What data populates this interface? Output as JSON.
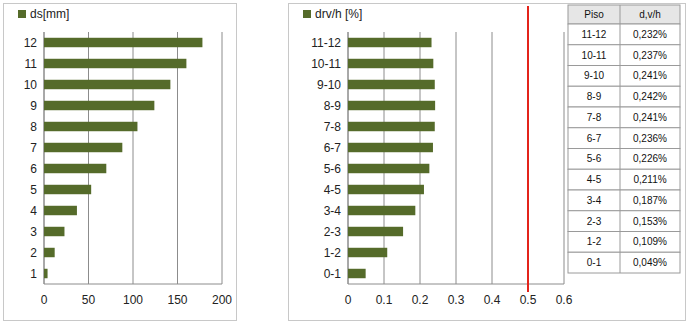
{
  "chart_data": [
    {
      "type": "bar",
      "orientation": "horizontal",
      "categories": [
        "1",
        "2",
        "3",
        "4",
        "5",
        "6",
        "7",
        "8",
        "9",
        "10",
        "11",
        "12"
      ],
      "series": [
        {
          "name": "ds[mm]",
          "color": "#556b2a",
          "values": [
            4,
            12,
            23,
            37,
            53,
            70,
            88,
            105,
            124,
            142,
            160,
            178
          ]
        }
      ],
      "xlim": [
        0,
        200
      ],
      "xticks": [
        0,
        50,
        100,
        150,
        200
      ],
      "grid": true,
      "legend": "top-left"
    },
    {
      "type": "bar",
      "orientation": "horizontal",
      "categories": [
        "0-1",
        "1-2",
        "2-3",
        "3-4",
        "4-5",
        "5-6",
        "6-7",
        "7-8",
        "8-9",
        "9-10",
        "10-11",
        "11-12"
      ],
      "series": [
        {
          "name": "drv/h [%]",
          "color": "#556b2a",
          "values": [
            0.049,
            0.109,
            0.153,
            0.187,
            0.211,
            0.226,
            0.236,
            0.241,
            0.242,
            0.241,
            0.237,
            0.232
          ]
        }
      ],
      "xlim": [
        0,
        0.6
      ],
      "xticks": [
        0,
        0.1,
        0.2,
        0.3,
        0.4,
        0.5,
        0.6
      ],
      "limit": 0.5,
      "grid": true,
      "legend": "top-left"
    }
  ],
  "table": {
    "header": [
      "Piso",
      "d,v/h"
    ],
    "rows": [
      [
        "11-12",
        "0,232%"
      ],
      [
        "10-11",
        "0,237%"
      ],
      [
        "9-10",
        "0,241%"
      ],
      [
        "8-9",
        "0,242%"
      ],
      [
        "7-8",
        "0,241%"
      ],
      [
        "6-7",
        "0,236%"
      ],
      [
        "5-6",
        "0,226%"
      ],
      [
        "4-5",
        "0,211%"
      ],
      [
        "3-4",
        "0,187%"
      ],
      [
        "2-3",
        "0,153%"
      ],
      [
        "1-2",
        "0,109%"
      ],
      [
        "0-1",
        "0,049%"
      ]
    ]
  }
}
